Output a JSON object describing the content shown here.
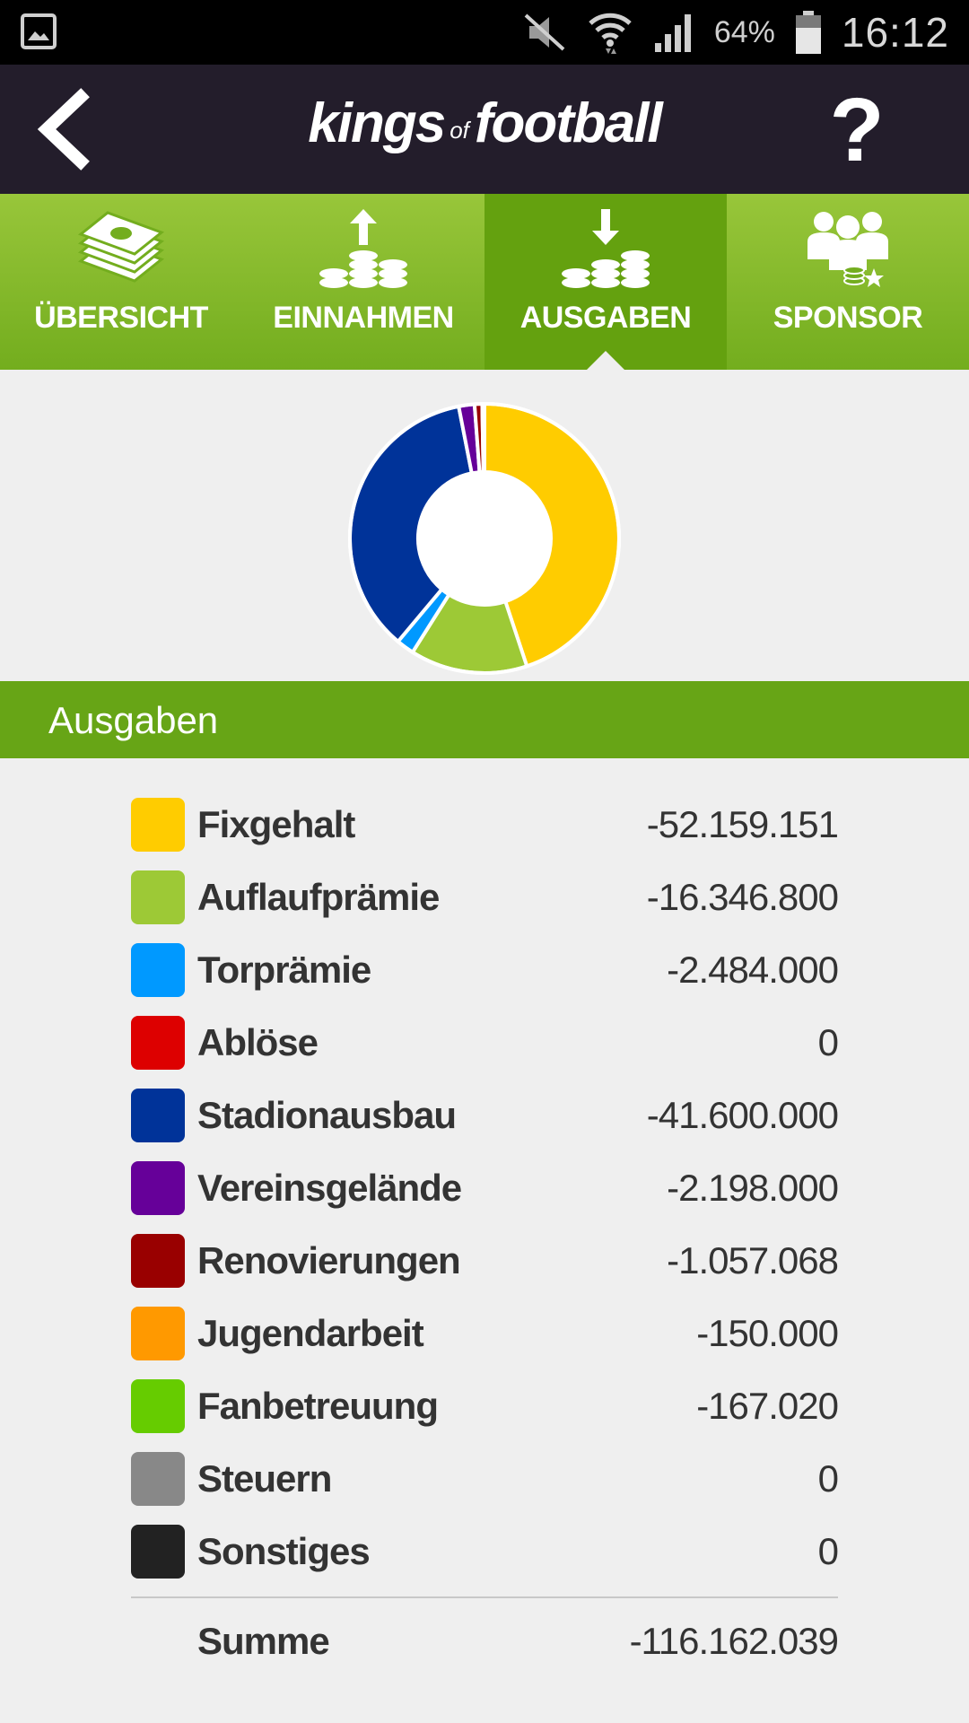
{
  "status_bar": {
    "battery": "64%",
    "time": "16:12",
    "icons": [
      "gallery-icon",
      "mute-icon",
      "wifi-icon",
      "signal-icon",
      "battery-icon"
    ]
  },
  "header": {
    "logo_left": "kings",
    "logo_of": "of",
    "logo_right": "football",
    "help": "?"
  },
  "tabs": [
    {
      "label": "ÜBERSICHT",
      "icon": "money-stack-icon",
      "active": false
    },
    {
      "label": "EINNAHMEN",
      "icon": "coins-up-icon",
      "active": false
    },
    {
      "label": "AUSGABEN",
      "icon": "coins-down-icon",
      "active": true
    },
    {
      "label": "SPONSOR",
      "icon": "sponsor-group-icon",
      "active": false
    }
  ],
  "section_title": "Ausgaben",
  "chart_data": {
    "type": "pie",
    "categories": [
      "Fixgehalt",
      "Auflaufprämie",
      "Torprämie",
      "Ablöse",
      "Stadionausbau",
      "Vereinsgelände",
      "Renovierungen",
      "Jugendarbeit",
      "Fanbetreuung",
      "Steuern",
      "Sonstiges"
    ],
    "values": [
      52159151,
      16346800,
      2484000,
      0,
      41600000,
      2198000,
      1057068,
      150000,
      167020,
      0,
      0
    ],
    "colors": [
      "#ffcc00",
      "#9dc936",
      "#0099ff",
      "#dd0000",
      "#003399",
      "#660099",
      "#990000",
      "#ff9900",
      "#66cc00",
      "#888888",
      "#222222"
    ],
    "donut": true
  },
  "rows": [
    {
      "label": "Fixgehalt",
      "value": "-52.159.151",
      "color": "#ffcc00"
    },
    {
      "label": "Auflaufprämie",
      "value": "-16.346.800",
      "color": "#9dc936"
    },
    {
      "label": "Torprämie",
      "value": "-2.484.000",
      "color": "#0099ff"
    },
    {
      "label": "Ablöse",
      "value": "0",
      "color": "#dd0000"
    },
    {
      "label": "Stadionausbau",
      "value": "-41.600.000",
      "color": "#003399"
    },
    {
      "label": "Vereinsgelände",
      "value": "-2.198.000",
      "color": "#660099"
    },
    {
      "label": "Renovierungen",
      "value": "-1.057.068",
      "color": "#990000"
    },
    {
      "label": "Jugendarbeit",
      "value": "-150.000",
      "color": "#ff9900"
    },
    {
      "label": "Fanbetreuung",
      "value": "-167.020",
      "color": "#66cc00"
    },
    {
      "label": "Steuern",
      "value": "0",
      "color": "#888888"
    },
    {
      "label": "Sonstiges",
      "value": "0",
      "color": "#222222"
    }
  ],
  "sum": {
    "label": "Summe",
    "value": "-116.162.039"
  }
}
